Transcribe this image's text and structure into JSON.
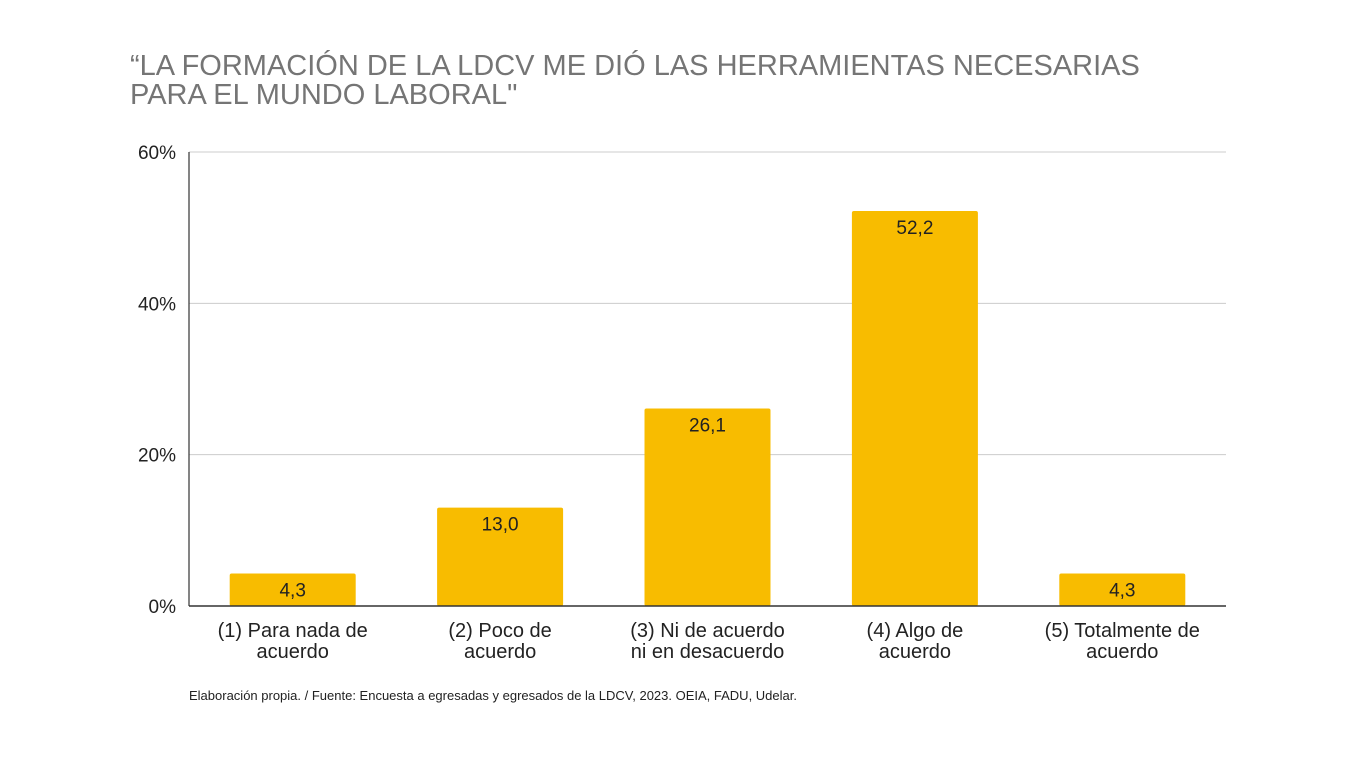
{
  "chart_data": {
    "type": "bar",
    "title_lines": [
      "“LA FORMACIÓN DE LA LDCV ME DIÓ LAS HERRAMIENTAS NECESARIAS",
      "PARA EL MUNDO LABORAL\""
    ],
    "categories": [
      [
        "(1) Para nada de",
        "acuerdo"
      ],
      [
        "(2) Poco de",
        "acuerdo"
      ],
      [
        "(3) Ni de acuerdo",
        "ni en desacuerdo"
      ],
      [
        "(4) Algo de",
        "acuerdo"
      ],
      [
        "(5) Totalmente de",
        "acuerdo"
      ]
    ],
    "values": [
      4.3,
      13.0,
      26.1,
      52.2,
      4.3
    ],
    "data_labels": [
      "4,3",
      "13,0",
      "26,1",
      "52,2",
      "4,3"
    ],
    "ylim": [
      0,
      60
    ],
    "yticks": [
      0,
      20,
      40,
      60
    ],
    "ytick_labels": [
      "0%",
      "20%",
      "40%",
      "60%"
    ],
    "grid": true,
    "bar_color": "#F8BC00",
    "source": "Elaboración propia. / Fuente: Encuesta a egresadas y egresados de la LDCV, 2023. OEIA, FADU, Udelar."
  }
}
